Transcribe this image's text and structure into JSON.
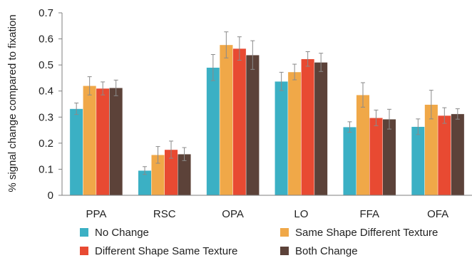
{
  "chart_data": {
    "type": "bar",
    "title": "",
    "xlabel": "",
    "ylabel": "% signal change  compared to fixation",
    "ylim": [
      0,
      0.7
    ],
    "yticks": [
      "0",
      "0.1",
      "0.2",
      "0.3",
      "0.4",
      "0.5",
      "0.6",
      "0.7"
    ],
    "ytick_values": [
      0,
      0.1,
      0.2,
      0.3,
      0.4,
      0.5,
      0.6,
      0.7
    ],
    "grid": false,
    "legend_position": "bottom",
    "categories": [
      "PPA",
      "RSC",
      "OPA",
      "LO",
      "FFA",
      "OFA"
    ],
    "series": [
      {
        "name": "No Change",
        "color": "#3bb0c4",
        "values": [
          0.332,
          0.095,
          0.49,
          0.437,
          0.262,
          0.263
        ],
        "errors": [
          0.022,
          0.015,
          0.05,
          0.035,
          0.02,
          0.03
        ]
      },
      {
        "name": "Same Shape Different Texture",
        "color": "#f0a848",
        "values": [
          0.42,
          0.155,
          0.577,
          0.473,
          0.385,
          0.348
        ],
        "errors": [
          0.035,
          0.032,
          0.05,
          0.03,
          0.047,
          0.055
        ]
      },
      {
        "name": "Different Shape Same Texture",
        "color": "#e84a32",
        "values": [
          0.41,
          0.175,
          0.563,
          0.523,
          0.297,
          0.306
        ],
        "errors": [
          0.025,
          0.033,
          0.045,
          0.028,
          0.03,
          0.03
        ]
      },
      {
        "name": "Both Change",
        "color": "#5c4239",
        "values": [
          0.412,
          0.158,
          0.538,
          0.51,
          0.292,
          0.312
        ],
        "errors": [
          0.03,
          0.025,
          0.055,
          0.035,
          0.038,
          0.02
        ]
      }
    ]
  }
}
